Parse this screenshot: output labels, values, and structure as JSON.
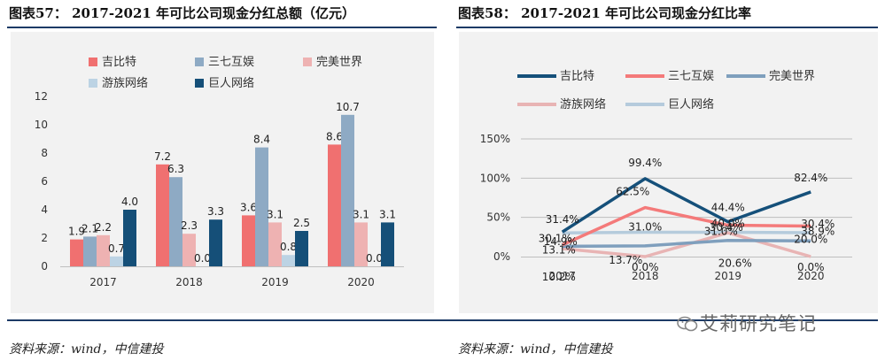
{
  "left": {
    "title": "图表57： 2017-2021 年可比公司现金分红总额（亿元）",
    "source": "资料来源：wind，中信建投"
  },
  "right": {
    "title": "图表58： 2017-2021 年可比公司现金分红比率",
    "source": "资料来源：wind，中信建投"
  },
  "watermark": "艾莉研究笔记",
  "colors": {
    "吉比特_bar": "#f07070",
    "三七互娱_bar": "#8eaac4",
    "完美世界_bar": "#eeb2b2",
    "游族网络_bar": "#bcd3e4",
    "巨人网络_bar": "#154f78",
    "吉比特_line": "#15507a",
    "三七互娱_line": "#f47a7a",
    "完美世界_line": "#7f9fbd",
    "游族网络_line": "#e8b4b4",
    "巨人网络_line": "#b5cbdc"
  },
  "chart_data": [
    {
      "type": "bar",
      "categories": [
        "2017",
        "2018",
        "2019",
        "2020"
      ],
      "ylim": [
        0,
        12
      ],
      "yticks": [
        0,
        2,
        4,
        6,
        8,
        10,
        12
      ],
      "legend": [
        "吉比特",
        "三七互娱",
        "完美世界",
        "游族网络",
        "巨人网络"
      ],
      "series": [
        {
          "name": "吉比特",
          "values": [
            1.9,
            7.2,
            3.6,
            8.6
          ],
          "labels": [
            "1.9",
            "7.2",
            "3.6",
            "8.6"
          ]
        },
        {
          "name": "三七互娱",
          "values": [
            2.1,
            6.3,
            8.4,
            10.7
          ],
          "labels": [
            "2.1",
            "6.3",
            "8.4",
            "10.7"
          ]
        },
        {
          "name": "完美世界",
          "values": [
            2.2,
            2.3,
            3.1,
            3.1
          ],
          "labels": [
            "2.2",
            "2.3",
            "3.1",
            "3.1"
          ]
        },
        {
          "name": "游族网络",
          "values": [
            0.7,
            0.0,
            0.8,
            0.0
          ],
          "labels": [
            "0.7",
            "0.0",
            "0.8",
            "0.0"
          ]
        },
        {
          "name": "巨人网络",
          "values": [
            4.0,
            3.3,
            2.5,
            3.1
          ],
          "labels": [
            "4.0",
            "3.3",
            "2.5",
            "3.1"
          ]
        }
      ]
    },
    {
      "type": "line",
      "categories": [
        "2017",
        "2018",
        "2019",
        "2020"
      ],
      "ylim": [
        0,
        150
      ],
      "yticks": [
        0,
        50,
        100,
        150
      ],
      "ytick_labels": [
        "0%",
        "50%",
        "100%",
        "150%"
      ],
      "legend": [
        "吉比特",
        "三七互娱",
        "完美世界",
        "游族网络",
        "巨人网络"
      ],
      "series": [
        {
          "name": "吉比特",
          "values": [
            31.4,
            99.4,
            44.4,
            82.4
          ],
          "labels": [
            "31.4%",
            "99.4%",
            "44.4%",
            "82.4%"
          ]
        },
        {
          "name": "三七互娱",
          "values": [
            14.9,
            62.5,
            40.0,
            38.9
          ],
          "labels": [
            "14.9%",
            "62.5%",
            "40.0%",
            "38.9%"
          ]
        },
        {
          "name": "完美世界",
          "values": [
            13.1,
            13.7,
            20.6,
            20.0
          ],
          "labels": [
            "13.1%",
            "13.7%",
            "20.6%",
            "20.0%"
          ]
        },
        {
          "name": "游族网络",
          "values": [
            10.2,
            0.0,
            30.4,
            0.0
          ],
          "labels": [
            "10.2%",
            "0.0%",
            "30.4%",
            "0.0%"
          ]
        },
        {
          "name": "巨人网络",
          "values": [
            30.1,
            31.0,
            31.0,
            30.4
          ],
          "labels": [
            "30.1%",
            "31.0%",
            "31.0%",
            "30.4%"
          ]
        }
      ]
    }
  ]
}
